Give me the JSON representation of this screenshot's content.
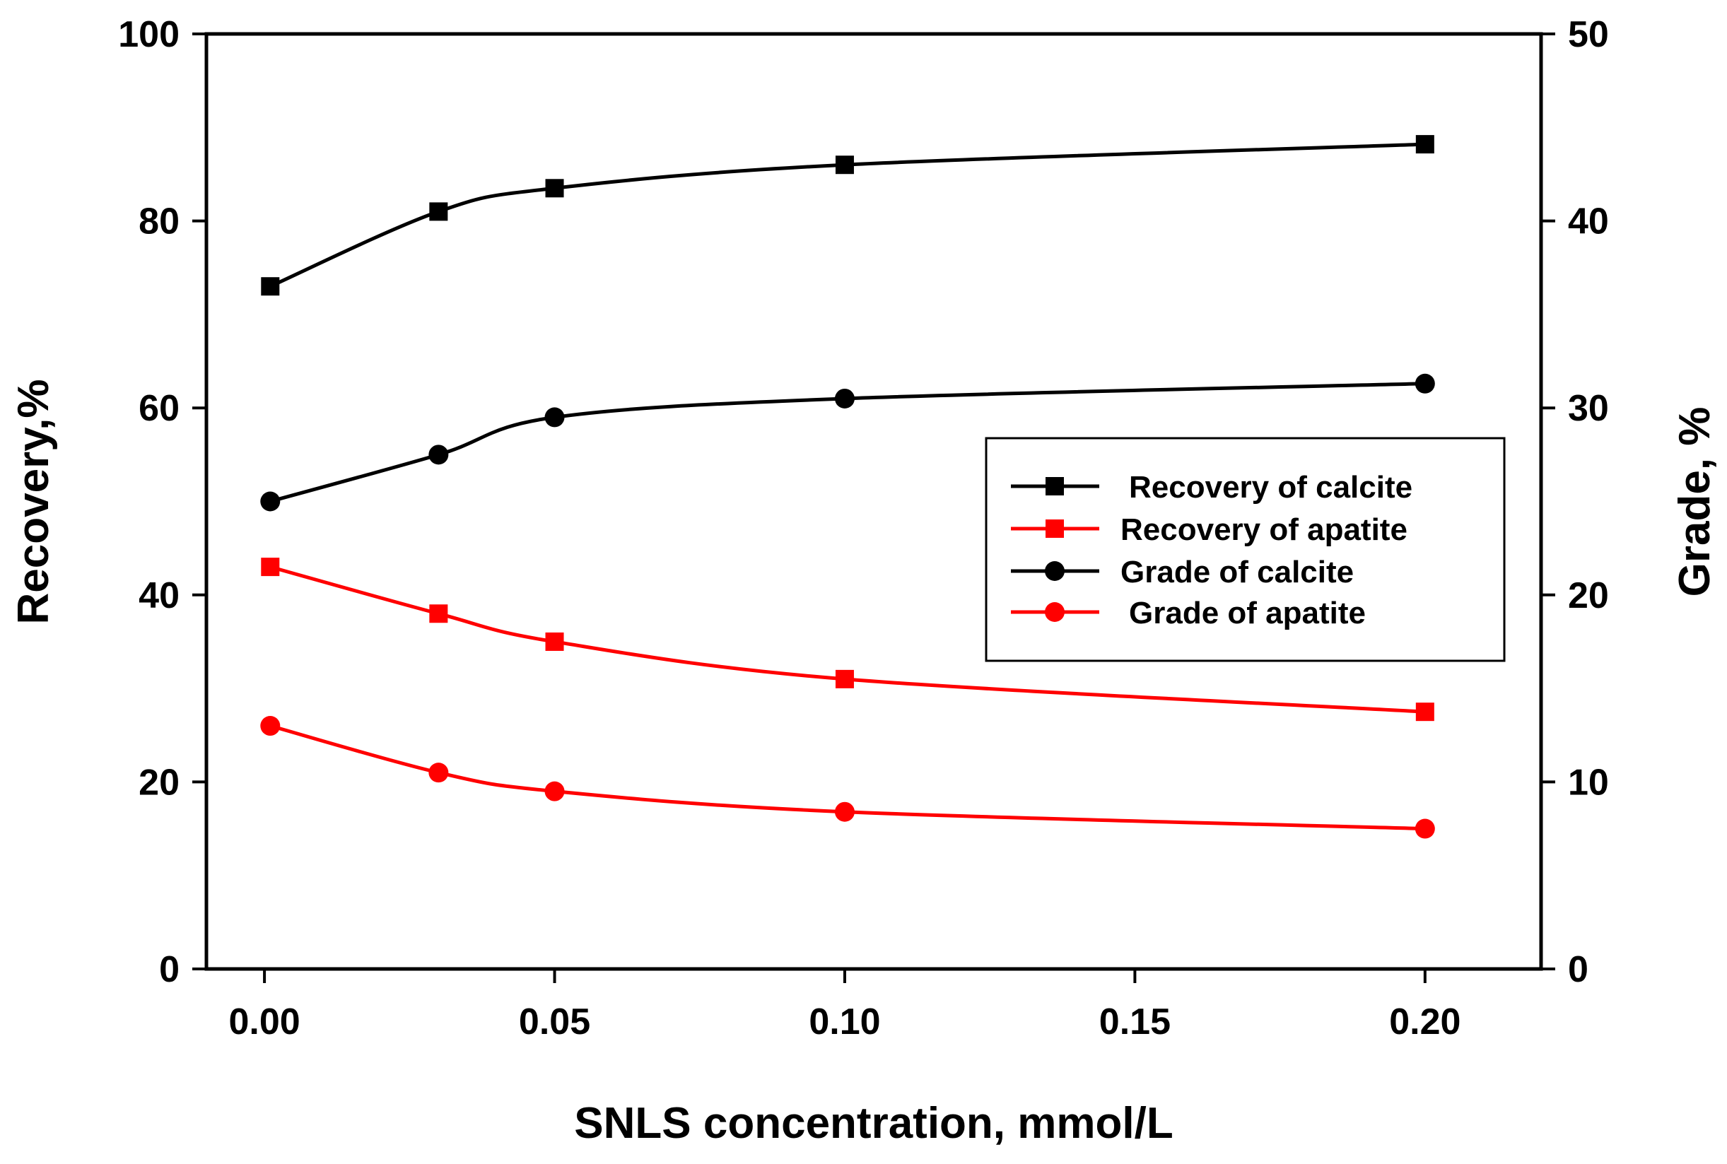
{
  "chart_data": {
    "type": "line",
    "title": "",
    "xlabel": "SNLS concentration, mmol/L",
    "ylabel": "Recovery,%",
    "y2label": "Grade, %",
    "x_tick_labels": [
      "0.00",
      "0.05",
      "0.10",
      "0.15",
      "0.20"
    ],
    "x_ticks": [
      0.0,
      0.05,
      0.1,
      0.15,
      0.2
    ],
    "y_tick_labels": [
      "0",
      "20",
      "40",
      "60",
      "80",
      "100"
    ],
    "y_ticks": [
      0,
      20,
      40,
      60,
      80,
      100
    ],
    "y2_tick_labels": [
      "0",
      "10",
      "20",
      "30",
      "40",
      "50"
    ],
    "y2_ticks": [
      0,
      10,
      20,
      30,
      40,
      50
    ],
    "xlim": [
      -0.01,
      0.22
    ],
    "ylim": [
      0,
      100
    ],
    "y2lim": [
      0,
      50
    ],
    "legend_position": "center-right",
    "series": [
      {
        "name": "Recovery of calcite",
        "axis": "left",
        "marker": "square",
        "color": "#000000",
        "x": [
          0.001,
          0.03,
          0.05,
          0.1,
          0.2
        ],
        "values": [
          73,
          81,
          83.5,
          86,
          88.2
        ]
      },
      {
        "name": "Recovery of apatite",
        "axis": "left",
        "marker": "square",
        "color": "#ff0000",
        "x": [
          0.001,
          0.03,
          0.05,
          0.1,
          0.2
        ],
        "values": [
          43,
          38,
          35,
          31,
          27.5
        ]
      },
      {
        "name": "Grade of calcite",
        "axis": "right",
        "marker": "circle",
        "color": "#000000",
        "x": [
          0.001,
          0.03,
          0.05,
          0.1,
          0.2
        ],
        "values": [
          25,
          27.5,
          29.5,
          30.5,
          31.3
        ]
      },
      {
        "name": "Grade of apatite",
        "axis": "right",
        "marker": "circle",
        "color": "#ff0000",
        "x": [
          0.001,
          0.03,
          0.05,
          0.1,
          0.2
        ],
        "values": [
          13,
          10.5,
          9.5,
          8.4,
          7.5
        ]
      }
    ]
  }
}
